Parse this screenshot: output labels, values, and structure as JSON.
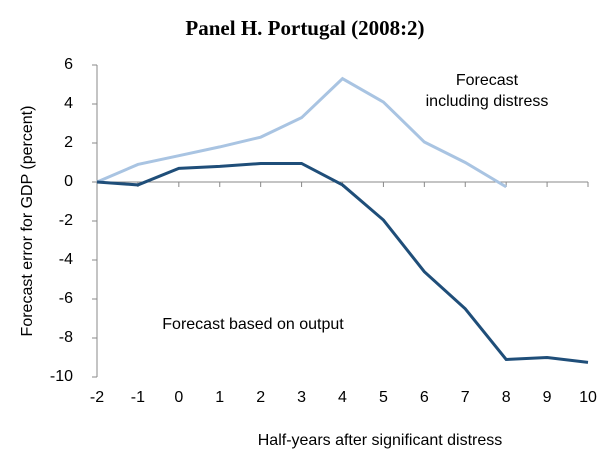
{
  "chart_data": {
    "type": "line",
    "title": "Panel H.  Portugal (2008:2)",
    "x_label": "Half-years after significant distress",
    "y_label": "Forecast error for GDP (percent)",
    "x": [
      -2,
      -1,
      0,
      1,
      2,
      3,
      4,
      5,
      6,
      7,
      8,
      9,
      10
    ],
    "series": [
      {
        "name": "Forecast including distress",
        "color": "#a9c4e2",
        "values": [
          0,
          0.9,
          1.35,
          1.8,
          2.3,
          3.3,
          5.3,
          4.1,
          2.05,
          1.0,
          -0.25,
          null,
          null
        ]
      },
      {
        "name": "Forecast based on output",
        "color": "#1f4e79",
        "values": [
          0,
          -0.15,
          0.7,
          0.8,
          0.95,
          0.95,
          -0.15,
          -1.95,
          -4.6,
          -6.5,
          -9.1,
          -9.0,
          -9.25
        ]
      }
    ],
    "xlim": [
      -2,
      10
    ],
    "xticks": [
      -2,
      -1,
      0,
      1,
      2,
      3,
      4,
      5,
      6,
      7,
      8,
      9,
      10
    ],
    "ylim": [
      -10,
      6
    ],
    "yticks": [
      -10,
      -8,
      -6,
      -4,
      -2,
      0,
      2,
      4,
      6
    ]
  }
}
